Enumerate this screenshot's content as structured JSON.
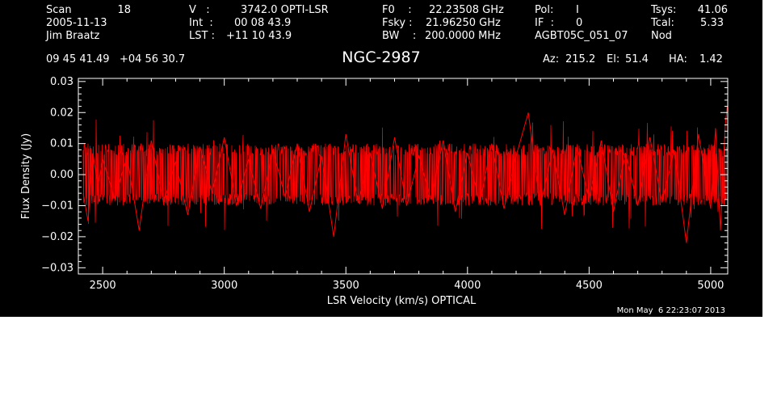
{
  "header": {
    "scan_label": "Scan",
    "scan_value": "18",
    "date": "2005-11-13",
    "observer": "Jim Braatz",
    "v_label": "V   :",
    "v_value": "3742.0 OPTI-LSR",
    "int_label": "Int  :",
    "int_value": "00 08 43.9",
    "lst_label": "LST :",
    "lst_value": "+11 10 43.9",
    "f0_label": "F0    :",
    "f0_value": "22.23508 GHz",
    "fsky_label": "Fsky :",
    "fsky_value": "21.96250 GHz",
    "bw_label": "BW    :",
    "bw_value": "200.0000 MHz",
    "pol_label": "Pol:",
    "pol_value": "I",
    "if_label": "IF  :",
    "if_value": "0",
    "project": "AGBT05C_051_07",
    "tsys_label": "Tsys:",
    "tsys_value": "41.06",
    "tcal_label": "Tcal:",
    "tcal_value": "5.33",
    "mode": "Nod",
    "coordinates": "09 45 41.49   +04 56 30.7",
    "source": "NGC-2987",
    "az_label": "Az:",
    "az_value": "215.2",
    "el_label": "El:",
    "el_value": "51.4",
    "ha_label": "HA:",
    "ha_value": "1.42"
  },
  "footer": {
    "timestamp": "Mon May  6 22:23:07 2013"
  },
  "colors": {
    "background": "#000000",
    "axes": "#ffffff",
    "trace": "#ff0000"
  },
  "chart_data": {
    "type": "line",
    "title": "NGC-2987",
    "xlabel": "LSR Velocity (km/s) OPTICAL",
    "ylabel": "Flux Density (Jy)",
    "xlim": [
      2400,
      5070
    ],
    "ylim": [
      -0.032,
      0.031
    ],
    "xticks": [
      2500,
      3000,
      3500,
      4000,
      4500,
      5000
    ],
    "xtick_labels": [
      "2500",
      "3000",
      "3500",
      "4000",
      "4500",
      "5000"
    ],
    "yticks": [
      -0.03,
      -0.02,
      -0.01,
      0.0,
      0.01,
      0.02,
      0.03
    ],
    "ytick_labels": [
      "−0.03",
      "−0.02",
      "−0.01",
      "0.00",
      "0.01",
      "0.02",
      "0.03"
    ],
    "grid": false,
    "series": [
      {
        "color": "#ff0000",
        "x": [
          2420,
          2440,
          2460,
          2480,
          2500,
          2550,
          2600,
          2650,
          2700,
          2750,
          2800,
          2850,
          2900,
          2950,
          3000,
          3050,
          3100,
          3150,
          3200,
          3250,
          3300,
          3350,
          3400,
          3450,
          3500,
          3550,
          3600,
          3650,
          3700,
          3750,
          3800,
          3850,
          3900,
          3950,
          4000,
          4050,
          4100,
          4150,
          4200,
          4250,
          4300,
          4350,
          4400,
          4450,
          4500,
          4550,
          4600,
          4650,
          4700,
          4750,
          4800,
          4850,
          4900,
          4950,
          5000,
          5020,
          5040,
          5060,
          5068
        ],
        "y": [
          -0.006,
          -0.015,
          0.007,
          -0.004,
          0.005,
          -0.008,
          0.006,
          -0.018,
          0.011,
          -0.009,
          0.004,
          -0.013,
          0.009,
          -0.006,
          0.012,
          -0.01,
          0.005,
          -0.011,
          0.008,
          -0.007,
          0.01,
          -0.012,
          0.006,
          -0.02,
          0.013,
          -0.009,
          0.007,
          -0.011,
          0.012,
          -0.01,
          0.006,
          -0.008,
          0.011,
          -0.012,
          0.007,
          -0.009,
          0.01,
          -0.011,
          0.006,
          0.02,
          -0.01,
          0.008,
          -0.013,
          0.009,
          -0.008,
          0.011,
          -0.012,
          0.007,
          -0.01,
          0.012,
          -0.009,
          0.008,
          -0.022,
          0.013,
          -0.011,
          0.015,
          -0.018,
          0.016,
          0.022
        ]
      }
    ]
  }
}
